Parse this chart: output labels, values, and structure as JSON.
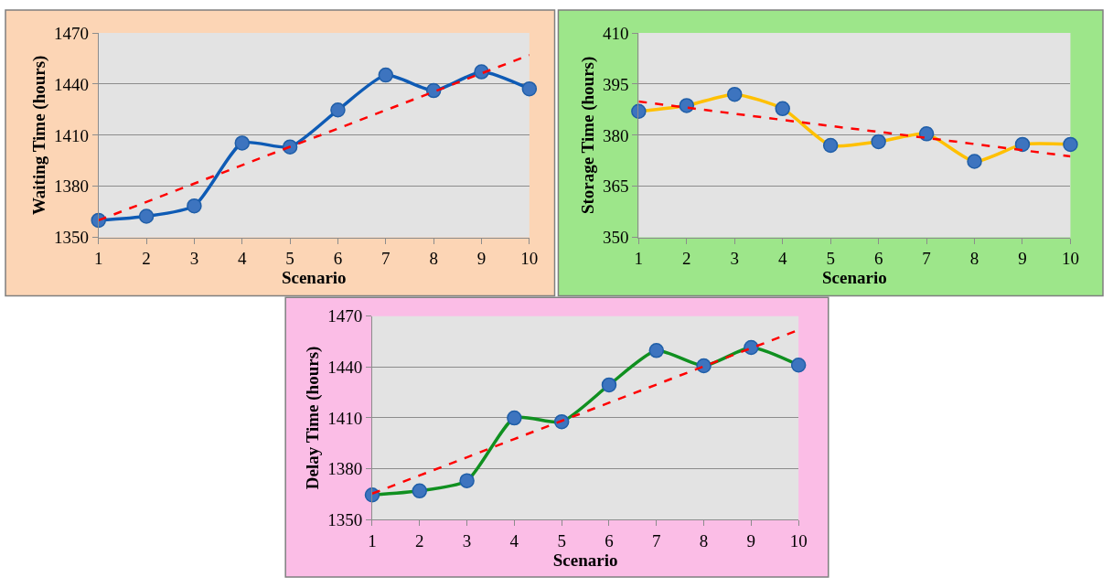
{
  "chart_data": [
    {
      "type": "line",
      "xlabel": "Scenario",
      "ylabel": "Waiting Time (hours)",
      "x": [
        1,
        2,
        3,
        4,
        5,
        6,
        7,
        8,
        9,
        10
      ],
      "xlim": [
        1,
        10
      ],
      "xticks": [
        1,
        2,
        3,
        4,
        5,
        6,
        7,
        8,
        9,
        10
      ],
      "ylim": [
        1350,
        1470
      ],
      "yticks": [
        1350,
        1380,
        1410,
        1440,
        1470
      ],
      "grid": "y",
      "series": [
        {
          "color": "#0e5bb5",
          "marker": "circle",
          "values": [
            1360,
            1362.4,
            1368.5,
            1405.4,
            1403.1,
            1424.8,
            1445.3,
            1436.2,
            1447.2,
            1437.2
          ]
        },
        {
          "type": "line",
          "color": "#ff0000",
          "line_style": "dashed",
          "marker": "none",
          "values": [
            1360,
            1370.8,
            1381.6,
            1392.4,
            1403.2,
            1413.9,
            1424.7,
            1435.5,
            1446.3,
            1457.1
          ]
        }
      ]
    },
    {
      "type": "line",
      "xlabel": "Scenario",
      "ylabel": "Storage Time (hours)",
      "x": [
        1,
        2,
        3,
        4,
        5,
        6,
        7,
        8,
        9,
        10
      ],
      "xlim": [
        1,
        10
      ],
      "xticks": [
        1,
        2,
        3,
        4,
        5,
        6,
        7,
        8,
        9,
        10
      ],
      "ylim": [
        350,
        410
      ],
      "yticks": [
        350,
        365,
        380,
        395,
        410
      ],
      "grid": "y",
      "series": [
        {
          "color": "#ffc000",
          "marker": "circle",
          "values": [
            387.0,
            388.7,
            392.0,
            387.8,
            377.0,
            378.1,
            380.4,
            372.3,
            377.3,
            377.3
          ]
        },
        {
          "type": "line",
          "color": "#ff0000",
          "line_style": "dashed",
          "marker": "none",
          "values": [
            389.9,
            388.1,
            386.3,
            384.5,
            382.7,
            381.0,
            379.2,
            377.4,
            375.6,
            373.8
          ]
        }
      ]
    },
    {
      "type": "line",
      "xlabel": "Scenario",
      "ylabel": "Delay Time (hours)",
      "x": [
        1,
        2,
        3,
        4,
        5,
        6,
        7,
        8,
        9,
        10
      ],
      "xlim": [
        1,
        10
      ],
      "xticks": [
        1,
        2,
        3,
        4,
        5,
        6,
        7,
        8,
        9,
        10
      ],
      "ylim": [
        1350,
        1470
      ],
      "yticks": [
        1350,
        1380,
        1410,
        1440,
        1470
      ],
      "grid": "y",
      "series": [
        {
          "color": "#109020",
          "marker": "circle",
          "values": [
            1364.5,
            1366.9,
            1372.9,
            1409.9,
            1407.7,
            1429.4,
            1449.7,
            1440.7,
            1451.5,
            1441.1
          ]
        },
        {
          "type": "line",
          "color": "#ff0000",
          "line_style": "dashed",
          "marker": "none",
          "values": [
            1365.3,
            1376.0,
            1386.7,
            1397.5,
            1408.2,
            1418.9,
            1429.6,
            1440.4,
            1451.1,
            1461.8
          ]
        }
      ]
    }
  ]
}
